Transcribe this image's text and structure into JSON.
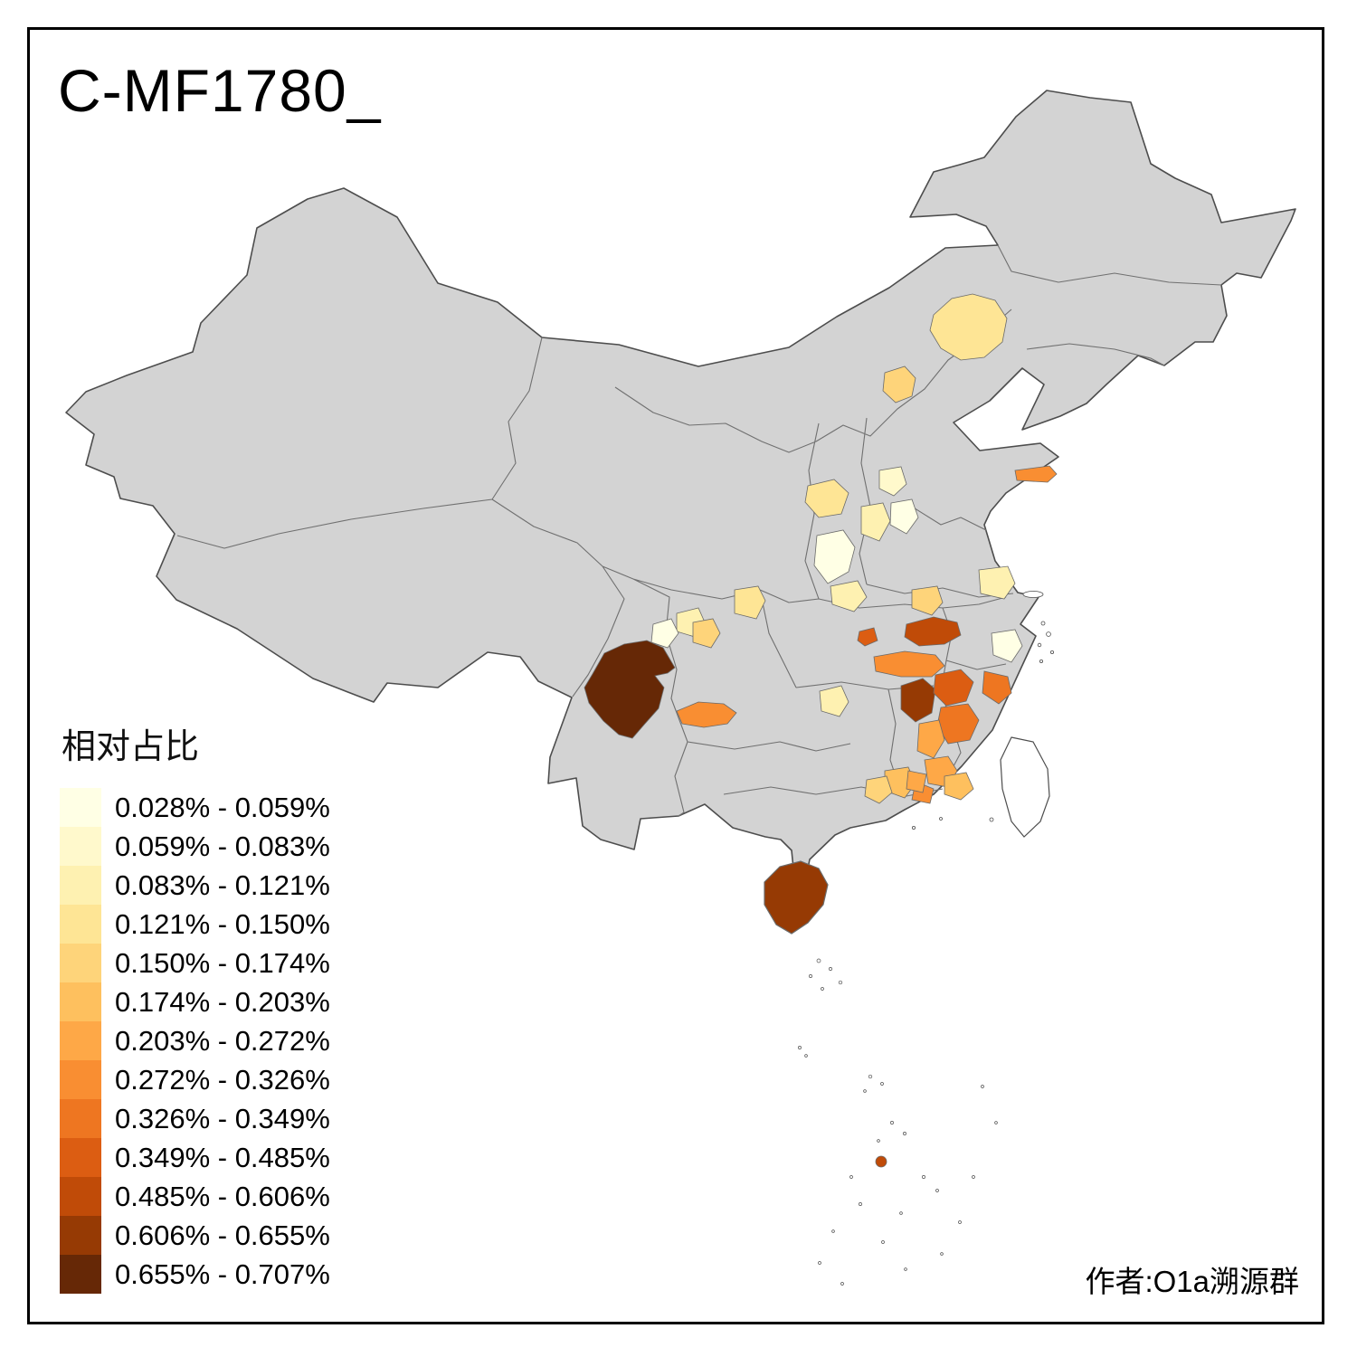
{
  "title": "C-MF1780_",
  "attribution": "作者:O1a溯源群",
  "legend": {
    "title": "相对占比",
    "items": [
      {
        "range": "0.028% - 0.059%",
        "color": "#FFFFE5"
      },
      {
        "range": "0.059% - 0.083%",
        "color": "#FFF9CC"
      },
      {
        "range": "0.083% - 0.121%",
        "color": "#FEF1B1"
      },
      {
        "range": "0.121% - 0.150%",
        "color": "#FEE595"
      },
      {
        "range": "0.150% - 0.174%",
        "color": "#FED47A"
      },
      {
        "range": "0.174% - 0.203%",
        "color": "#FEC05E"
      },
      {
        "range": "0.203% - 0.272%",
        "color": "#FEA847"
      },
      {
        "range": "0.272% - 0.326%",
        "color": "#F98E32"
      },
      {
        "range": "0.326% - 0.349%",
        "color": "#EE7621"
      },
      {
        "range": "0.349% - 0.485%",
        "color": "#DC5D12"
      },
      {
        "range": "0.485% - 0.606%",
        "color": "#C04B08"
      },
      {
        "range": "0.606% - 0.655%",
        "color": "#963A04"
      },
      {
        "range": "0.655% - 0.707%",
        "color": "#662806"
      }
    ]
  },
  "map": {
    "land_color": "#D3D3D3",
    "island_color": "#FFFFFF",
    "national_border_color": "#4D4D4D",
    "province_border_color": "#707070",
    "patch_border_color": "#6A6A6A",
    "frame_color": "#000000"
  }
}
